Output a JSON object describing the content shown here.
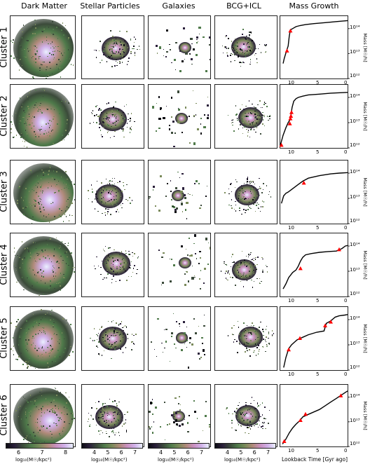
{
  "columns": [
    "Dark Matter",
    "Stellar Particles",
    "Galaxies",
    "BCG+ICL",
    "Mass Growth"
  ],
  "rows": [
    "Cluster 1",
    "Cluster 2",
    "Cluster 3",
    "Cluster 4",
    "Cluster 5",
    "Cluster 6"
  ],
  "mass_growth": {
    "ylabel": "Mass [M☉/h]",
    "xlabel": "Lookback Time [Gyr ago]",
    "y_ticks": [
      "10¹⁴",
      "10¹³",
      "10¹²"
    ],
    "x_ticks": [
      "10",
      "5",
      "0"
    ],
    "marker_color": "#ff0000",
    "line_color": "#000000"
  },
  "colorbars": [
    {
      "ticks": [
        "6",
        "7",
        "8"
      ],
      "label": "log₁₀(M☉/kpc²)"
    },
    {
      "ticks": [
        "4",
        "5",
        "6",
        "7"
      ],
      "label": "log₁₀(M☉/kpc²)"
    },
    {
      "ticks": [
        "4",
        "5",
        "6",
        "7"
      ],
      "label": "log₁₀(M☉/kpc²)"
    },
    {
      "ticks": [
        "4",
        "5",
        "6",
        "7"
      ],
      "label": "log₁₀(M☉/kpc²)"
    }
  ],
  "colormap": [
    "#0b0b12",
    "#2a1f3a",
    "#3b4a3a",
    "#4f7a4a",
    "#7a8a5a",
    "#b08a7a",
    "#c990c0",
    "#d0b0e8",
    "#eaf0ff"
  ],
  "chart_data": [
    {
      "type": "line",
      "name": "Cluster 1",
      "xlim": [
        12,
        0
      ],
      "ylim_log10": [
        12,
        14.5
      ],
      "x": [
        11.5,
        11.3,
        11.1,
        10.9,
        10.6,
        10.4,
        10.2,
        9.8,
        9.2,
        8.5,
        7.5,
        6,
        4,
        2,
        0
      ],
      "y_log10": [
        12.6,
        12.8,
        12.95,
        13.1,
        13.3,
        13.7,
        13.95,
        14.0,
        14.08,
        14.12,
        14.16,
        14.2,
        14.24,
        14.28,
        14.32
      ],
      "markers": {
        "x": [
          10.8,
          10.2
        ],
        "y_log10": [
          13.1,
          13.9
        ]
      }
    },
    {
      "type": "line",
      "name": "Cluster 2",
      "xlim": [
        12,
        0
      ],
      "ylim_log10": [
        12,
        14.5
      ],
      "x": [
        12,
        11.5,
        11,
        10.6,
        10.3,
        10.1,
        9.9,
        9.6,
        9.2,
        8.8,
        8,
        7,
        5,
        3,
        0
      ],
      "y_log10": [
        12.1,
        12.5,
        12.8,
        13.0,
        13.1,
        13.3,
        13.6,
        13.85,
        13.95,
        14.0,
        14.05,
        14.1,
        14.13,
        14.17,
        14.2
      ],
      "markers": {
        "x": [
          11.8,
          10.3,
          10.2,
          10.1,
          10.0
        ],
        "y_log10": [
          12.1,
          12.95,
          13.15,
          13.25,
          13.4
        ]
      }
    },
    {
      "type": "line",
      "name": "Cluster 3",
      "xlim": [
        12,
        0
      ],
      "ylim_log10": [
        12,
        14.5
      ],
      "x": [
        11.8,
        11.6,
        11.4,
        11.0,
        10.6,
        10.0,
        9.4,
        8.8,
        8.0,
        7.0,
        5.0,
        3.0,
        1.5,
        0
      ],
      "y_log10": [
        12.8,
        12.95,
        13.1,
        13.2,
        13.25,
        13.35,
        13.45,
        13.55,
        13.68,
        13.8,
        13.9,
        13.97,
        14.0,
        14.02
      ],
      "markers": {
        "x": [
          7.8
        ],
        "y_log10": [
          13.6
        ]
      }
    },
    {
      "type": "line",
      "name": "Cluster 4",
      "xlim": [
        12,
        0
      ],
      "ylim_log10": [
        12,
        14.5
      ],
      "x": [
        11.5,
        11.0,
        10.5,
        9.8,
        9.2,
        8.8,
        8.4,
        8.0,
        7.5,
        6.5,
        5.0,
        3.5,
        2.0,
        1.5,
        1.0,
        0.4,
        0
      ],
      "y_log10": [
        12.3,
        12.5,
        12.75,
        12.95,
        13.05,
        13.2,
        13.4,
        13.55,
        13.65,
        13.7,
        13.75,
        13.78,
        13.8,
        13.85,
        13.9,
        14.0,
        14.02
      ],
      "markers": {
        "x": [
          8.4,
          1.5
        ],
        "y_log10": [
          13.1,
          13.85
        ]
      }
    },
    {
      "type": "line",
      "name": "Cluster 5",
      "xlim": [
        12,
        0
      ],
      "ylim_log10": [
        12,
        14.5
      ],
      "x": [
        11.4,
        11.0,
        10.5,
        10.0,
        9.5,
        9.0,
        8.5,
        8.0,
        7.0,
        5.5,
        4.2,
        3.8,
        3.0,
        2.2,
        1.5,
        0.5,
        0
      ],
      "y_log10": [
        12.1,
        12.5,
        12.85,
        13.0,
        13.1,
        13.2,
        13.25,
        13.3,
        13.4,
        13.5,
        13.55,
        13.85,
        13.95,
        14.1,
        14.15,
        14.18,
        14.2
      ],
      "markers": {
        "x": [
          10.5,
          8.5,
          4.0,
          3.0
        ],
        "y_log10": [
          12.8,
          13.25,
          13.75,
          13.9
        ]
      }
    },
    {
      "type": "line",
      "name": "Cluster 6",
      "xlim": [
        12,
        0
      ],
      "ylim_log10": [
        12,
        14.5
      ],
      "x": [
        11.6,
        11.0,
        10.4,
        9.8,
        9.2,
        8.5,
        8.0,
        7.0,
        6.0,
        5.0,
        4.0,
        3.0,
        2.0,
        1.0,
        0
      ],
      "y_log10": [
        12.1,
        12.3,
        12.55,
        12.75,
        12.9,
        13.05,
        13.2,
        13.3,
        13.4,
        13.5,
        13.65,
        13.8,
        13.95,
        14.1,
        14.25
      ],
      "markers": {
        "x": [
          11.3,
          8.4,
          7.5,
          1.2
        ],
        "y_log10": [
          12.2,
          13.05,
          13.3,
          14.05
        ]
      }
    }
  ]
}
